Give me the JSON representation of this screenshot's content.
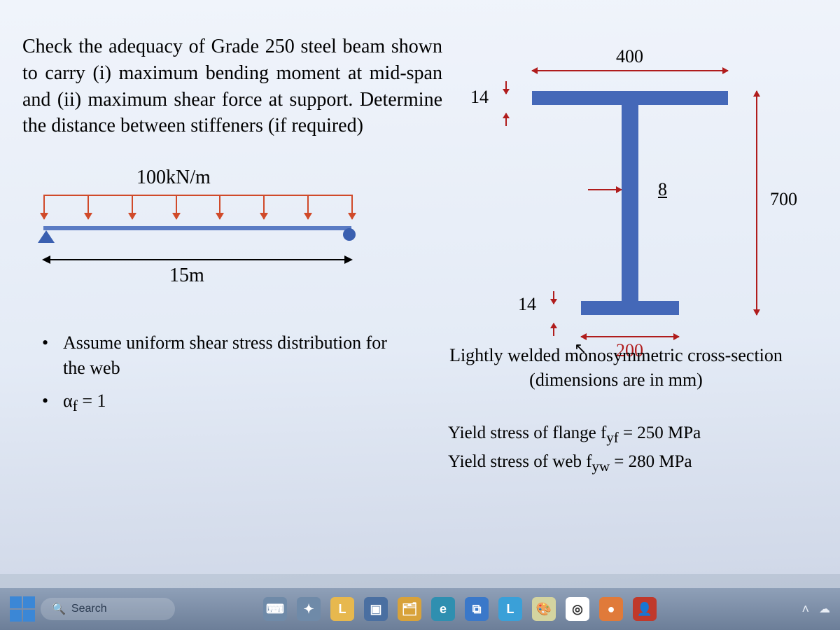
{
  "problem": {
    "text": "Check the adequacy of Grade 250 steel beam shown to carry (i) maximum bending moment at mid-span and (ii) maximum shear force at support. Determine the distance between stiffeners (if required)"
  },
  "beam": {
    "load_label": "100kN/m",
    "span_label": "15m",
    "arrow_count": 8,
    "colors": {
      "beam": "#5a7bc4",
      "load": "#d04a2a",
      "support": "#3a5fb0"
    }
  },
  "assumptions": {
    "item1": "Assume uniform shear stress distribution for the web",
    "item2_html": "α<sub>f</sub> = 1"
  },
  "section": {
    "top_flange_width": "400",
    "top_flange_thk": "14",
    "bot_flange_thk": "14",
    "bot_flange_width": "200",
    "web_thk": "8",
    "overall_depth": "700",
    "fill_color": "#4468b8",
    "dim_color": "#b01c1c"
  },
  "notes": {
    "caption_line1": "Lightly welded monosymmetric cross-section",
    "caption_line2": "(dimensions are in mm)",
    "yield_flange_html": "Yield stress of flange f<sub>yf</sub> = 250 MPa",
    "yield_web_html": "Yield stress of web f<sub>yw</sub> = 280 MPa"
  },
  "taskbar": {
    "search_placeholder": "Search",
    "icons": [
      {
        "name": "keyboard-icon",
        "bg": "#6f8aa8",
        "label": "⌨"
      },
      {
        "name": "copilot-icon",
        "bg": "#6f8aa8",
        "label": "✦"
      },
      {
        "name": "folder-icon",
        "bg": "#e7b84e",
        "label": "L"
      },
      {
        "name": "video-icon",
        "bg": "#4a6fa1",
        "label": "▣"
      },
      {
        "name": "explorer-icon",
        "bg": "#d8a23a",
        "label": "🗂"
      },
      {
        "name": "edge-icon",
        "bg": "#2f8fb0",
        "label": "e"
      },
      {
        "name": "store-icon",
        "bg": "#3a78c9",
        "label": "⧉"
      },
      {
        "name": "app-l-icon",
        "bg": "#3aa0d8",
        "label": "L"
      },
      {
        "name": "paint-icon",
        "bg": "#d4d4a0",
        "label": "🎨"
      },
      {
        "name": "chrome-icon",
        "bg": "#ffffff",
        "label": "◎"
      },
      {
        "name": "app-orange-icon",
        "bg": "#e07a3a",
        "label": "●"
      },
      {
        "name": "contact-icon",
        "bg": "#c0392b",
        "label": "👤"
      }
    ]
  }
}
